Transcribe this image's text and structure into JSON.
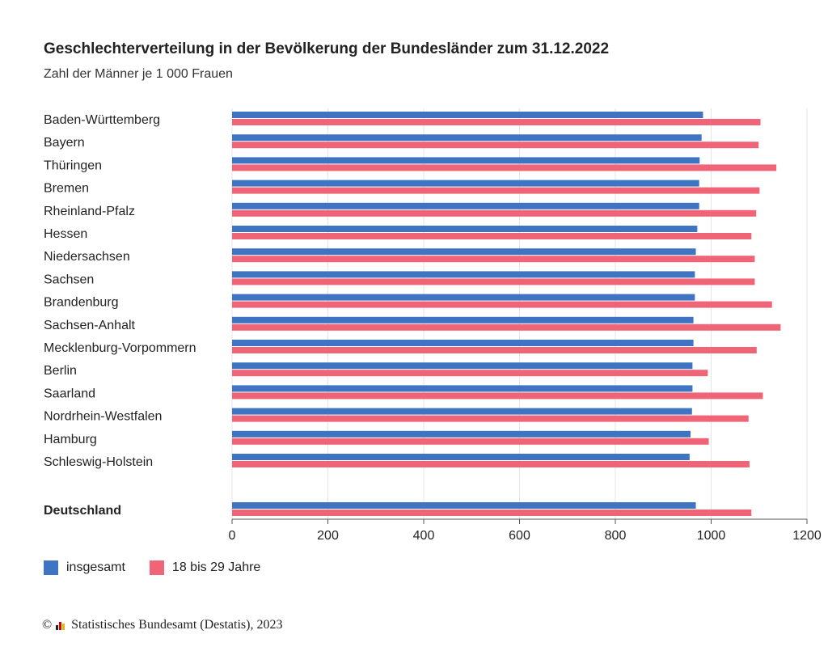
{
  "chart_data": {
    "type": "bar",
    "orientation": "horizontal",
    "title": "Geschlechterverteilung in der Bevölkerung der Bundesländer zum 31.12.2022",
    "subtitle": "Zahl der Männer je 1 000 Frauen",
    "categories": [
      "Baden-Württemberg",
      "Bayern",
      "Thüringen",
      "Bremen",
      "Rheinland-Pfalz",
      "Hessen",
      "Niedersachsen",
      "Sachsen",
      "Brandenburg",
      "Sachsen-Anhalt",
      "Mecklenburg-Vorpommern",
      "Berlin",
      "Saarland",
      "Nordrhein-Westfalen",
      "Hamburg",
      "Schleswig-Holstein",
      "Deutschland"
    ],
    "series": [
      {
        "name": "insgesamt",
        "color": "#3e74c2",
        "values": [
          983,
          980,
          976,
          975,
          975,
          971,
          968,
          966,
          966,
          963,
          963,
          961,
          961,
          960,
          957,
          955,
          968
        ]
      },
      {
        "name": "18 bis 29 Jahre",
        "color": "#f06478",
        "values": [
          1103,
          1099,
          1136,
          1101,
          1094,
          1084,
          1091,
          1091,
          1127,
          1145,
          1095,
          993,
          1108,
          1078,
          995,
          1080,
          1084
        ]
      }
    ],
    "xlim": [
      0,
      1200
    ],
    "xticks": [
      "0",
      "200",
      "400",
      "600",
      "800",
      "1000",
      "1200"
    ],
    "grid": true,
    "legend_position": "bottom-left"
  },
  "source": "Statistisches Bundesamt (Destatis), 2023",
  "copyright_symbol": "©"
}
